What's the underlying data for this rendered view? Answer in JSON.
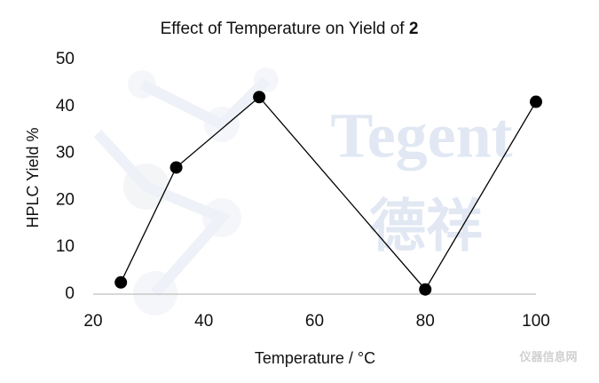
{
  "chart_data": {
    "type": "line",
    "title": "Effect of Temperature on Yield of ",
    "title_compound": "2",
    "x_label": "Temperature / °C",
    "y_label": "HPLC Yield %",
    "x": [
      25,
      35,
      50,
      80,
      100
    ],
    "series": [
      {
        "color": "#000000",
        "values": [
          2.5,
          27,
          42,
          1,
          41
        ]
      }
    ],
    "xlim": [
      20,
      100
    ],
    "xticks": [
      20,
      40,
      60,
      80,
      100
    ],
    "ylim": [
      0,
      50
    ],
    "yticks": [
      0,
      10,
      20,
      30,
      40,
      50
    ],
    "grid": false,
    "watermarks": [
      "Tegent",
      "德祥",
      "仪器信息网"
    ]
  }
}
